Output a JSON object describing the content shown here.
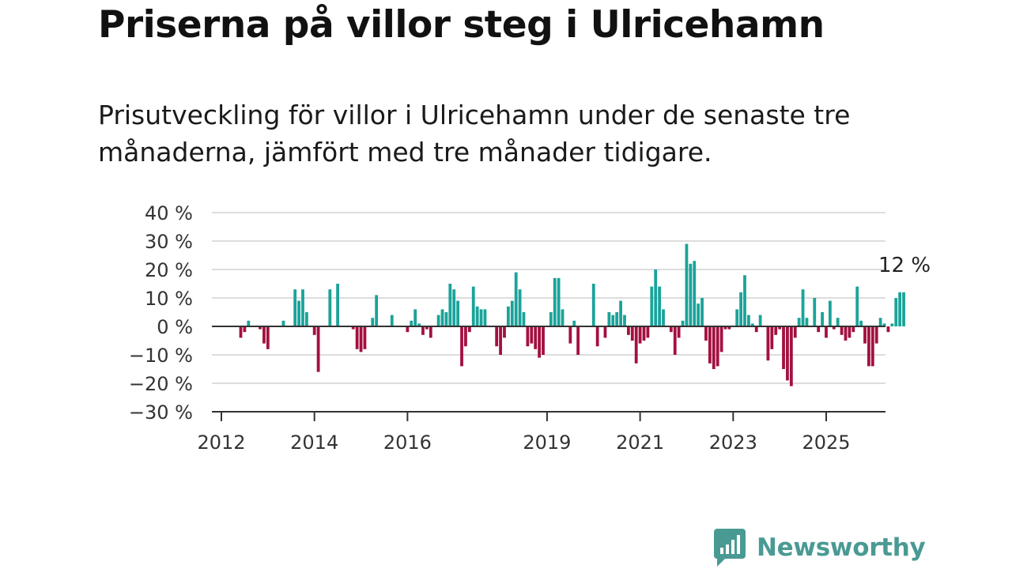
{
  "header": {
    "title": "Priserna på villor steg i Ulricehamn",
    "subtitle": "Prisutveckling för villor i Ulricehamn under de senaste tre månaderna, jämfört med tre månader tidigare."
  },
  "brand": {
    "name": "Newsworthy",
    "color": "#4a9a94",
    "icon": "newsworthy-logo-icon"
  },
  "chart_data": {
    "type": "bar",
    "ylim": [
      -30,
      40
    ],
    "yticks": [
      40,
      30,
      20,
      10,
      0,
      -10,
      -20,
      -30
    ],
    "ytick_labels": [
      "40 %",
      "30 %",
      "20 %",
      "10 %",
      "0 %",
      "−10 %",
      "−20 %",
      "−30 %"
    ],
    "xticks": [
      2012,
      2014,
      2016,
      2019,
      2021,
      2023,
      2025
    ],
    "xtick_labels": [
      "2012",
      "2014",
      "2016",
      "2019",
      "2021",
      "2023",
      "2025"
    ],
    "x_start": 2012.0,
    "x_step": 0.08333,
    "grid": true,
    "colors": {
      "positive": "#1aa39a",
      "negative": "#a3103f",
      "grid": "#dddddd",
      "axis": "#333333"
    },
    "annotation": {
      "label": "12 %",
      "value": 12
    },
    "values": [
      0,
      0,
      0,
      0,
      0,
      -4,
      -2,
      2,
      0,
      0,
      -1,
      -6,
      -8,
      0,
      0,
      0,
      2,
      0,
      0,
      13,
      9,
      13,
      5,
      0,
      -3,
      -16,
      0,
      0,
      13,
      0,
      15,
      0,
      0,
      0,
      -1,
      -8,
      -9,
      -8,
      0,
      3,
      11,
      0,
      0,
      0,
      4,
      0,
      0,
      0,
      -2,
      2,
      6,
      1,
      -3,
      -1,
      -4,
      0,
      4,
      6,
      5,
      15,
      13,
      9,
      -14,
      -7,
      -2,
      14,
      7,
      6,
      6,
      0,
      0,
      -7,
      -10,
      -4,
      7,
      9,
      19,
      13,
      5,
      -7,
      -6,
      -8,
      -11,
      -10,
      0,
      5,
      17,
      17,
      6,
      0,
      -6,
      2,
      -10,
      0,
      0,
      0,
      15,
      -7,
      0,
      -4,
      5,
      4,
      5,
      9,
      4,
      -3,
      -5,
      -13,
      -6,
      -5,
      -4,
      14,
      20,
      14,
      6,
      0,
      -2,
      -10,
      -4,
      2,
      29,
      22,
      23,
      8,
      10,
      -5,
      -13,
      -15,
      -14,
      -9,
      -1,
      -1,
      0,
      6,
      12,
      18,
      4,
      1,
      -2,
      4,
      0,
      -12,
      -8,
      -3,
      -1,
      -15,
      -19,
      -21,
      -4,
      3,
      13,
      3,
      0,
      10,
      -2,
      5,
      -4,
      9,
      -1,
      3,
      -3,
      -5,
      -4,
      -2,
      14,
      2,
      -6,
      -14,
      -14,
      -6,
      3,
      1,
      -2,
      1,
      10,
      12,
      12
    ]
  }
}
